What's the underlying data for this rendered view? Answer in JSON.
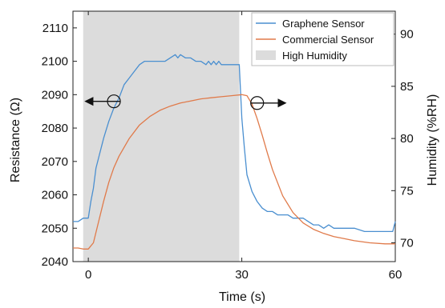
{
  "chart_data": {
    "type": "line",
    "title": "",
    "xlabel": "Time (s)",
    "ylabel_left": "Resistance (Ω)",
    "ylabel_right": "Humidity (%RH)",
    "xlim": [
      -3,
      60
    ],
    "ylim_left": [
      2040,
      2115
    ],
    "ylim_right": [
      68.2,
      92.2
    ],
    "xticks": [
      0,
      30,
      60
    ],
    "yticks_left": [
      2040,
      2050,
      2060,
      2070,
      2080,
      2090,
      2100,
      2110
    ],
    "yticks_right": [
      70,
      75,
      80,
      85,
      90
    ],
    "grid": false,
    "legend_position": "top-right",
    "shaded_region": {
      "name": "High Humidity",
      "x_start": -1,
      "x_end": 29.5,
      "color": "#dcdcdc"
    },
    "series": [
      {
        "name": "Graphene Sensor",
        "axis": "left",
        "color": "#4a8fd0",
        "points": [
          [
            -3,
            2052
          ],
          [
            -2,
            2052
          ],
          [
            -1,
            2053
          ],
          [
            0,
            2053
          ],
          [
            0.5,
            2058
          ],
          [
            1,
            2062
          ],
          [
            1.5,
            2068
          ],
          [
            2,
            2071
          ],
          [
            3,
            2077
          ],
          [
            4,
            2082
          ],
          [
            5,
            2086
          ],
          [
            6,
            2089
          ],
          [
            7,
            2093
          ],
          [
            8,
            2095
          ],
          [
            9,
            2097
          ],
          [
            10,
            2099
          ],
          [
            11,
            2100
          ],
          [
            12,
            2100
          ],
          [
            13,
            2100
          ],
          [
            14,
            2100
          ],
          [
            15,
            2100
          ],
          [
            16,
            2101
          ],
          [
            17,
            2102
          ],
          [
            17.5,
            2101
          ],
          [
            18,
            2102
          ],
          [
            19,
            2101
          ],
          [
            20,
            2101
          ],
          [
            21,
            2100
          ],
          [
            22,
            2100
          ],
          [
            23,
            2099
          ],
          [
            23.5,
            2100
          ],
          [
            24,
            2099
          ],
          [
            24.5,
            2100
          ],
          [
            25,
            2099
          ],
          [
            25.5,
            2100
          ],
          [
            26,
            2099
          ],
          [
            27,
            2099
          ],
          [
            28,
            2099
          ],
          [
            29,
            2099
          ],
          [
            29.5,
            2099
          ],
          [
            30,
            2083
          ],
          [
            30.5,
            2074
          ],
          [
            31,
            2066
          ],
          [
            32,
            2061
          ],
          [
            33,
            2058
          ],
          [
            34,
            2056
          ],
          [
            35,
            2055
          ],
          [
            36,
            2055
          ],
          [
            37,
            2054
          ],
          [
            38,
            2054
          ],
          [
            39,
            2054
          ],
          [
            40,
            2053
          ],
          [
            41,
            2053
          ],
          [
            42,
            2053
          ],
          [
            43,
            2052
          ],
          [
            44,
            2051
          ],
          [
            45,
            2051
          ],
          [
            46,
            2050
          ],
          [
            47,
            2051
          ],
          [
            48,
            2050
          ],
          [
            49,
            2050
          ],
          [
            50,
            2050
          ],
          [
            52,
            2050
          ],
          [
            54,
            2049
          ],
          [
            56,
            2049
          ],
          [
            58,
            2049
          ],
          [
            59.5,
            2049
          ],
          [
            60,
            2052
          ]
        ]
      },
      {
        "name": "Commercial Sensor",
        "axis": "right",
        "color": "#e07a4a",
        "points": [
          [
            -3,
            69.5
          ],
          [
            -2,
            69.5
          ],
          [
            -1,
            69.4
          ],
          [
            0,
            69.4
          ],
          [
            1,
            70.0
          ],
          [
            2,
            72.0
          ],
          [
            3,
            74.0
          ],
          [
            4,
            75.8
          ],
          [
            5,
            77.2
          ],
          [
            6,
            78.3
          ],
          [
            8,
            80.0
          ],
          [
            10,
            81.3
          ],
          [
            12,
            82.1
          ],
          [
            14,
            82.7
          ],
          [
            16,
            83.1
          ],
          [
            18,
            83.4
          ],
          [
            20,
            83.6
          ],
          [
            22,
            83.8
          ],
          [
            24,
            83.9
          ],
          [
            26,
            84.0
          ],
          [
            28,
            84.1
          ],
          [
            30,
            84.2
          ],
          [
            31,
            84.1
          ],
          [
            32,
            83.3
          ],
          [
            33,
            81.9
          ],
          [
            34,
            80.3
          ],
          [
            35,
            78.6
          ],
          [
            36,
            77.0
          ],
          [
            38,
            74.5
          ],
          [
            40,
            72.9
          ],
          [
            42,
            71.9
          ],
          [
            44,
            71.3
          ],
          [
            46,
            70.9
          ],
          [
            48,
            70.6
          ],
          [
            50,
            70.4
          ],
          [
            52,
            70.2
          ],
          [
            55,
            70.0
          ],
          [
            58,
            69.9
          ],
          [
            60,
            69.9
          ]
        ]
      }
    ],
    "annotations": [
      {
        "type": "circle-arrow",
        "x": 5,
        "y_axis": "left",
        "y": 2088,
        "direction": "left"
      },
      {
        "type": "circle-arrow",
        "x": 33,
        "y_axis": "right",
        "y": 83.4,
        "direction": "right"
      }
    ]
  }
}
